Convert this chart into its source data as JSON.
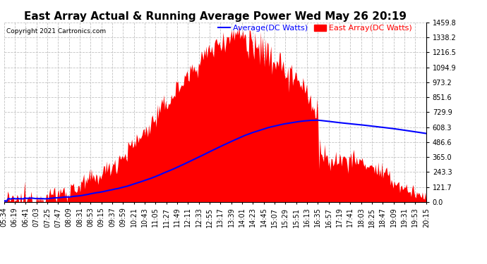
{
  "title": "East Array Actual & Running Average Power Wed May 26 20:19",
  "copyright": "Copyright 2021 Cartronics.com",
  "legend_avg": "Average(DC Watts)",
  "legend_east": "East Array(DC Watts)",
  "legend_avg_color": "blue",
  "legend_east_color": "red",
  "yticks": [
    0.0,
    121.7,
    243.3,
    365.0,
    486.6,
    608.3,
    729.9,
    851.6,
    973.2,
    1094.9,
    1216.5,
    1338.2,
    1459.8
  ],
  "ymax": 1459.8,
  "background_color": "#ffffff",
  "plot_bg_color": "#ffffff",
  "grid_color": "#bbbbbb",
  "fill_color": "#ff0000",
  "avg_line_color": "blue",
  "title_fontsize": 11,
  "tick_fontsize": 7,
  "xtick_labels": [
    "05:34",
    "06:19",
    "06:41",
    "07:03",
    "07:25",
    "07:47",
    "08:09",
    "08:31",
    "08:53",
    "09:15",
    "09:37",
    "09:59",
    "10:21",
    "10:43",
    "11:05",
    "11:27",
    "11:49",
    "12:11",
    "12:33",
    "12:55",
    "13:17",
    "13:39",
    "14:01",
    "14:23",
    "14:45",
    "15:07",
    "15:29",
    "15:51",
    "16:13",
    "16:35",
    "16:57",
    "17:19",
    "17:41",
    "18:03",
    "18:25",
    "18:47",
    "19:09",
    "19:31",
    "19:53",
    "20:15"
  ]
}
